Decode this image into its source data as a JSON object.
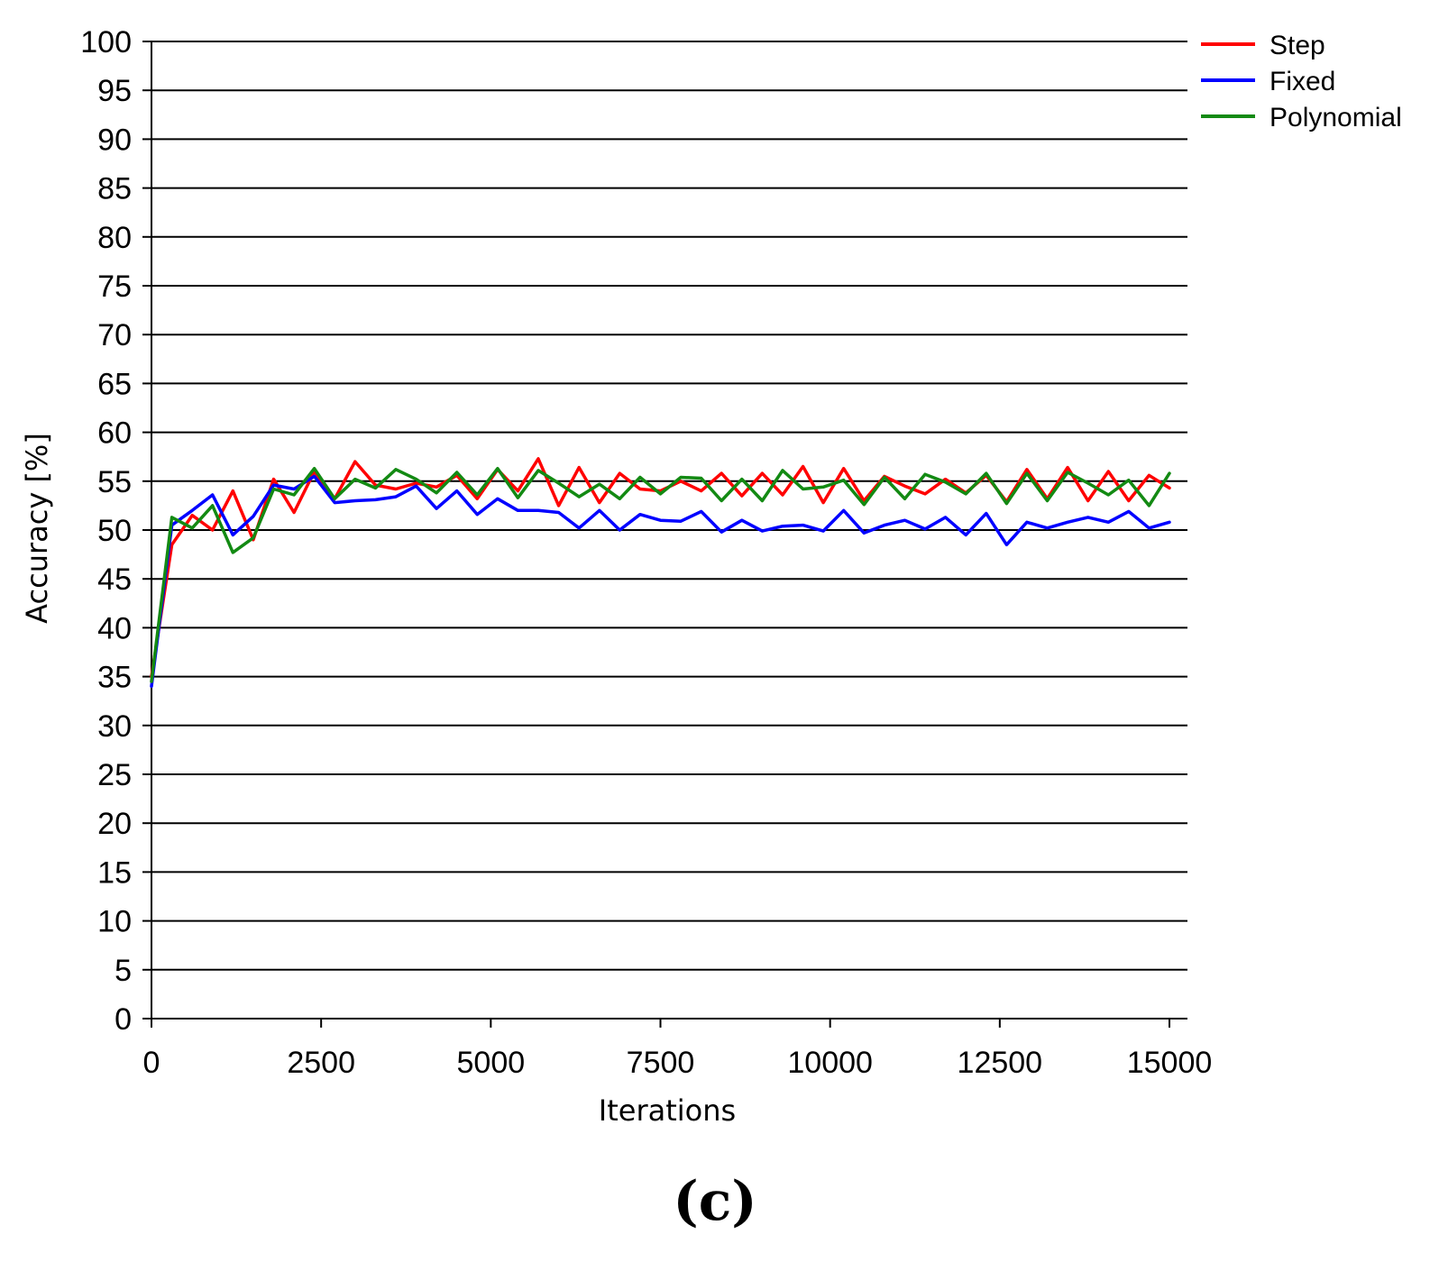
{
  "panel_label": "(c)",
  "chart_data": {
    "type": "line",
    "xlabel": "Iterations",
    "ylabel": "Accuracy [%]",
    "xlim": [
      0,
      15000
    ],
    "ylim": [
      0,
      100
    ],
    "x_ticks": [
      "0",
      "2500",
      "5000",
      "7500",
      "10000",
      "12500",
      "15000"
    ],
    "y_ticks": [
      "0",
      "5",
      "10",
      "15",
      "20",
      "25",
      "30",
      "35",
      "40",
      "45",
      "50",
      "55",
      "60",
      "65",
      "70",
      "75",
      "80",
      "85",
      "90",
      "95",
      "100"
    ],
    "grid": "horizontal",
    "legend_position": "top-right",
    "x": [
      0,
      300,
      600,
      900,
      1200,
      1500,
      1800,
      2100,
      2400,
      2700,
      3000,
      3300,
      3600,
      3900,
      4200,
      4500,
      4800,
      5100,
      5400,
      5700,
      6000,
      6300,
      6600,
      6900,
      7200,
      7500,
      7800,
      8100,
      8400,
      8700,
      9000,
      9300,
      9600,
      9900,
      10200,
      10500,
      10800,
      11100,
      11400,
      11700,
      12000,
      12300,
      12600,
      12900,
      13200,
      13500,
      13800,
      14100,
      14400,
      14700,
      15000
    ],
    "series": [
      {
        "name": "Step",
        "color": "#ff0000",
        "values": [
          35,
          48.5,
          51.5,
          50,
          54,
          49,
          55.2,
          51.8,
          56,
          53.2,
          57,
          54.6,
          54.2,
          54.8,
          54.4,
          55.6,
          53.2,
          56.2,
          54,
          57.3,
          52.5,
          56.4,
          52.8,
          55.8,
          54.2,
          54,
          55,
          54,
          55.8,
          53.5,
          55.8,
          53.6,
          56.5,
          52.8,
          56.3,
          53,
          55.5,
          54.5,
          53.7,
          55.2,
          53.8,
          55.6,
          52.9,
          56.2,
          53.2,
          56.4,
          53,
          56,
          53,
          55.6,
          54.3
        ]
      },
      {
        "name": "Fixed",
        "color": "#0000ff",
        "values": [
          34,
          50.5,
          52,
          53.6,
          49.5,
          51.4,
          54.6,
          54.2,
          55.5,
          52.8,
          53,
          53.1,
          53.4,
          54.5,
          52.2,
          54,
          51.6,
          53.2,
          52,
          52,
          51.8,
          50.2,
          52,
          50,
          51.6,
          51,
          50.9,
          51.9,
          49.8,
          51,
          49.9,
          50.4,
          50.5,
          49.9,
          52,
          49.7,
          50.5,
          51,
          50.1,
          51.3,
          49.5,
          51.7,
          48.5,
          50.8,
          50.2,
          50.8,
          51.3,
          50.8,
          51.9,
          50.2,
          50.8
        ]
      },
      {
        "name": "Polynomial",
        "color": "#138a13",
        "values": [
          34.5,
          51.3,
          50.2,
          52.5,
          47.7,
          49.2,
          54.2,
          53.6,
          56.3,
          53.2,
          55.2,
          54.3,
          56.2,
          55.2,
          53.8,
          55.9,
          53.6,
          56.3,
          53.3,
          56.1,
          54.8,
          53.4,
          54.7,
          53.2,
          55.4,
          53.7,
          55.4,
          55.3,
          53,
          55.2,
          53,
          56.1,
          54.2,
          54.4,
          55.1,
          52.6,
          55.4,
          53.2,
          55.7,
          54.9,
          53.7,
          55.8,
          52.7,
          55.8,
          53,
          55.9,
          54.8,
          53.6,
          55.1,
          52.5,
          55.8
        ]
      }
    ]
  }
}
